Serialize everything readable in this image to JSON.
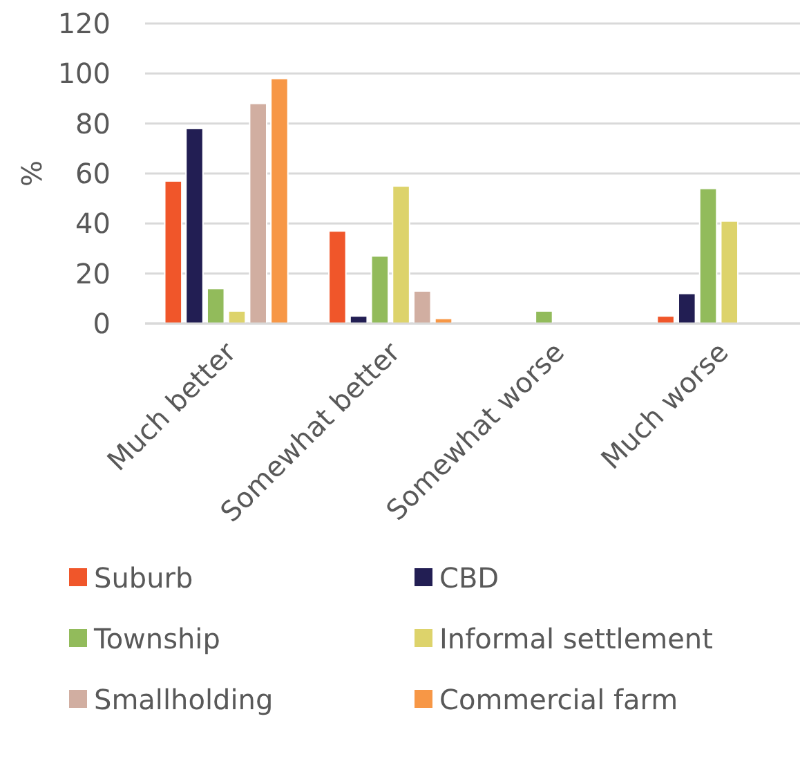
{
  "chart_data": {
    "type": "bar",
    "ylabel": "%",
    "categories": [
      "Much better",
      "Somewhat better",
      "Somewhat worse",
      "Much worse"
    ],
    "series": [
      {
        "name": "Suburb",
        "color": "#f0562a",
        "values": [
          57,
          37,
          0,
          3
        ]
      },
      {
        "name": "CBD",
        "color": "#221e53",
        "values": [
          78,
          3,
          0,
          12
        ]
      },
      {
        "name": "Township",
        "color": "#92bb5b",
        "values": [
          14,
          27,
          5,
          54
        ]
      },
      {
        "name": "Informal settlement",
        "color": "#ddd36b",
        "values": [
          5,
          55,
          0,
          41
        ]
      },
      {
        "name": "Smallholding",
        "color": "#d1aea1",
        "values": [
          88,
          13,
          0,
          0
        ]
      },
      {
        "name": "Commercial farm",
        "color": "#f79746",
        "values": [
          98,
          2,
          0,
          0
        ]
      }
    ],
    "ylim": [
      0,
      120
    ],
    "yticks": [
      0,
      20,
      40,
      60,
      80,
      100,
      120
    ],
    "grid": "y",
    "legend": "bottom"
  }
}
